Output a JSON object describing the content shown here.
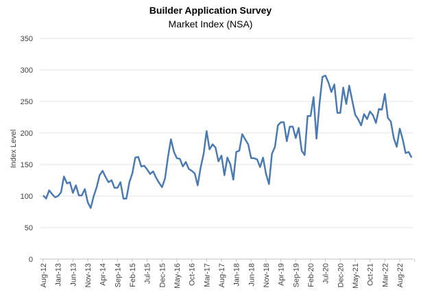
{
  "chart_data": {
    "type": "line",
    "title": "Builder Application Survey",
    "subtitle": "Market Index (NSA)",
    "xlabel": "",
    "ylabel": "Index Level",
    "ylim": [
      0,
      350
    ],
    "yticks": [
      0,
      50,
      100,
      150,
      200,
      250,
      300,
      350
    ],
    "grid": true,
    "legend": "none",
    "start_month": "Aug-12",
    "xtick_labels": [
      "Aug-12",
      "Jan-13",
      "Jun-13",
      "Nov-13",
      "Apr-14",
      "Sep-14",
      "Feb-15",
      "Jul-15",
      "Dec-15",
      "May-16",
      "Oct-16",
      "Mar-17",
      "Aug-17",
      "Jan-18",
      "Jun-18",
      "Nov-18",
      "Apr-19",
      "Sep-19",
      "Feb-20",
      "Jul-20",
      "Dec-20",
      "May-21",
      "Oct-21",
      "Mar-22",
      "Aug-22"
    ],
    "series": [
      {
        "name": "Market Index (NSA)",
        "color": "#4a7ab0",
        "values": [
          101,
          96,
          109,
          103,
          98,
          100,
          106,
          131,
          120,
          122,
          105,
          117,
          101,
          101,
          111,
          90,
          81,
          100,
          114,
          133,
          140,
          130,
          122,
          125,
          113,
          113,
          122,
          96,
          96,
          122,
          136,
          161,
          162,
          147,
          148,
          142,
          135,
          139,
          129,
          121,
          114,
          128,
          162,
          190,
          170,
          160,
          159,
          147,
          154,
          143,
          140,
          136,
          117,
          145,
          167,
          203,
          174,
          182,
          177,
          155,
          164,
          133,
          161,
          150,
          126,
          170,
          172,
          198,
          190,
          182,
          160,
          160,
          158,
          146,
          161,
          135,
          119,
          167,
          178,
          212,
          217,
          217,
          187,
          210,
          210,
          192,
          208,
          172,
          165,
          227,
          227,
          257,
          191,
          247,
          289,
          291,
          280,
          265,
          277,
          232,
          232,
          272,
          246,
          275,
          252,
          229,
          222,
          212,
          230,
          222,
          234,
          228,
          216,
          238,
          237,
          262,
          224,
          218,
          192,
          178,
          207,
          190,
          168,
          170,
          161
        ]
      }
    ]
  }
}
